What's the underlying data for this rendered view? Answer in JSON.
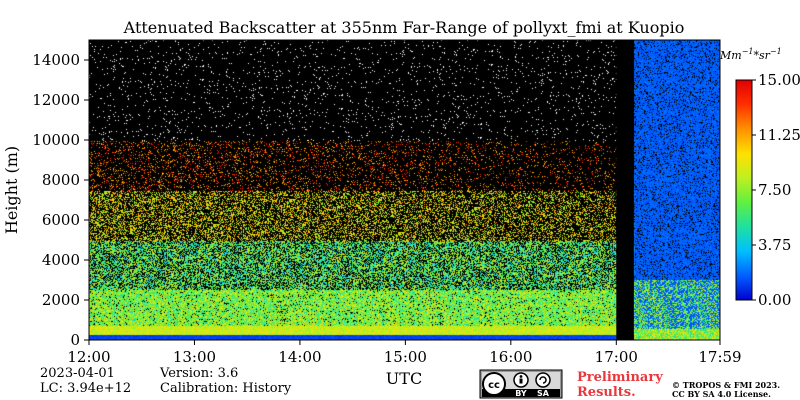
{
  "chart_data": {
    "type": "heatmap",
    "title": "Attenuated Backscatter at 355nm Far-Range of pollyxt_fmi at Kuopio",
    "xlabel": "UTC",
    "ylabel": "Height (m)",
    "x_range": [
      "12:00",
      "17:59"
    ],
    "x_ticks": [
      "12:00",
      "13:00",
      "14:00",
      "15:00",
      "16:00",
      "17:00",
      "17:59"
    ],
    "ylim": [
      0,
      15000
    ],
    "y_ticks": [
      0,
      2000,
      4000,
      6000,
      8000,
      10000,
      12000,
      14000
    ],
    "y_tick_labels": [
      "0",
      "2000",
      "4000",
      "6000",
      "8000",
      "10000",
      "12000",
      "14000"
    ],
    "colorbar": {
      "unit": "Mm^{-1}*sr^{-1}",
      "unit_display": "Mm",
      "unit_sup1": "−1",
      "unit_mid": "*sr",
      "unit_sup2": "−1",
      "min": 0.0,
      "max": 15.0,
      "tick_values": [
        0.0,
        3.75,
        7.5,
        11.25,
        15.0
      ],
      "tick_labels": [
        "0.00",
        "3.75",
        "7.50",
        "11.25",
        "15.00"
      ],
      "colors": [
        "#0000d0",
        "#0060ff",
        "#00c0ff",
        "#20e0a0",
        "#60f040",
        "#c0f020",
        "#ffe000",
        "#ff9000",
        "#ff3000",
        "#e00000"
      ]
    },
    "gaps": [
      {
        "from": "17:00",
        "to": "17:10"
      }
    ],
    "legend": "right"
  },
  "footer": {
    "date": "2023-04-01",
    "lc": "LC: 3.94e+12",
    "version": "Version: 3.6",
    "calibration": "Calibration: History",
    "preliminary_line1": "Preliminary",
    "preliminary_line2": "Results.",
    "copyright_line1": "© TROPOS & FMI 2023.",
    "copyright_line2": "CC BY SA 4.0 License.",
    "cc_badge": "cc",
    "cc_by": "BY",
    "cc_sa": "SA"
  }
}
